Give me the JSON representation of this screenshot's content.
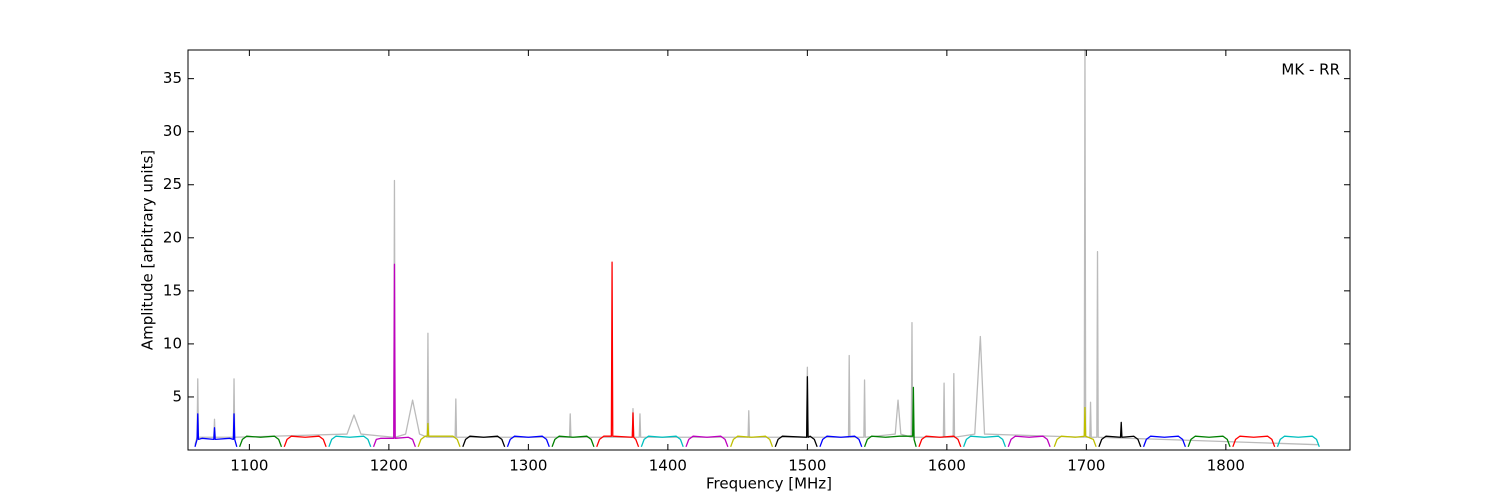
{
  "chart_data": {
    "type": "line",
    "annotation": "MK - RR",
    "x_label": "Frequency [MHz]",
    "y_label": "Amplitude [arbitrary units]",
    "xlim": [
      1056,
      1889
    ],
    "ylim": [
      0,
      37.7
    ],
    "xticks": [
      1100,
      1200,
      1300,
      1400,
      1500,
      1600,
      1700,
      1800
    ],
    "yticks": [
      5,
      10,
      15,
      20,
      25,
      30,
      35
    ],
    "series": [
      {
        "color": "#bbbbbb",
        "x": [
          1061,
          1062.5,
          1063,
          1063.5,
          1074.5,
          1075,
          1075.5,
          1088.5,
          1089,
          1089.5,
          1170,
          1175,
          1180,
          1203.5,
          1204,
          1204.5,
          1212,
          1217,
          1222,
          1227.5,
          1228,
          1228.5,
          1247.5,
          1248,
          1248.5,
          1329.5,
          1330,
          1330.5,
          1374.5,
          1375,
          1375.5,
          1379.5,
          1380,
          1380.5,
          1457.5,
          1458,
          1458.5,
          1499.5,
          1500,
          1500.5,
          1529.5,
          1530,
          1530.5,
          1540.5,
          1541,
          1541.5,
          1563,
          1565,
          1567,
          1574.5,
          1575,
          1575.5,
          1597.5,
          1598,
          1598.5,
          1604.5,
          1605,
          1605.5,
          1620,
          1624,
          1627,
          1698.5,
          1699,
          1699.5,
          1702.5,
          1703,
          1703.5,
          1707.5,
          1708,
          1708.5,
          1866
        ],
        "values": [
          0.5,
          1.2,
          6.7,
          1.2,
          1.2,
          2.9,
          1.2,
          1.2,
          6.7,
          1.2,
          1.5,
          3.3,
          1.5,
          1.2,
          25.4,
          1.2,
          1.5,
          4.7,
          1.5,
          1.2,
          11,
          1.2,
          1.2,
          4.8,
          1.2,
          1.2,
          3.4,
          1.2,
          1.2,
          3.9,
          1.2,
          1.2,
          3.4,
          1.2,
          1.2,
          3.7,
          1.2,
          1.2,
          7.8,
          1.2,
          1.2,
          8.9,
          1.2,
          1.2,
          6.6,
          1.2,
          1.5,
          4.7,
          1.5,
          1.2,
          12,
          1.2,
          1.2,
          6.3,
          1.2,
          1.2,
          7.2,
          1.2,
          1.5,
          10.7,
          1.5,
          1.2,
          37.7,
          1.2,
          1.2,
          4.5,
          1.2,
          1.2,
          18.7,
          1.2,
          0.5
        ]
      },
      {
        "color": "#0000ff",
        "x": [
          1061,
          1062.5,
          1063,
          1063.5,
          1066,
          1074.5,
          1075,
          1075.5,
          1086,
          1088.5,
          1089,
          1089.5,
          1091
        ],
        "values": [
          0.3,
          1.0,
          3.4,
          1.0,
          1.1,
          1.0,
          2.1,
          1.0,
          1.1,
          1.0,
          3.4,
          1.0,
          0.3
        ]
      },
      {
        "color": "#008000",
        "x": [
          1093,
          1095,
          1098,
          1108,
          1118,
          1121,
          1123
        ],
        "values": [
          0.3,
          1.0,
          1.3,
          1.2,
          1.3,
          1.0,
          0.3
        ]
      },
      {
        "color": "#ff0000",
        "x": [
          1125,
          1127,
          1130,
          1140,
          1150,
          1153,
          1155
        ],
        "values": [
          0.3,
          1.0,
          1.3,
          1.2,
          1.3,
          1.0,
          0.3
        ]
      },
      {
        "color": "#00bfbf",
        "x": [
          1157,
          1159,
          1162,
          1172,
          1182,
          1185,
          1187
        ],
        "values": [
          0.3,
          1.0,
          1.3,
          1.2,
          1.3,
          1.0,
          0.3
        ]
      },
      {
        "color": "#bf00bf",
        "x": [
          1189,
          1191,
          1194,
          1203.5,
          1204,
          1204.5,
          1214,
          1217,
          1219
        ],
        "values": [
          0.3,
          1.0,
          1.1,
          1.1,
          17.5,
          1.1,
          1.2,
          1.0,
          0.3
        ]
      },
      {
        "color": "#bfbf00",
        "x": [
          1221,
          1223,
          1226,
          1227.5,
          1228,
          1228.5,
          1246,
          1249,
          1251
        ],
        "values": [
          0.3,
          1.0,
          1.3,
          1.3,
          2.5,
          1.3,
          1.3,
          1.0,
          0.3
        ]
      },
      {
        "color": "#000000",
        "x": [
          1253,
          1255,
          1258,
          1268,
          1278,
          1281,
          1283
        ],
        "values": [
          0.3,
          1.0,
          1.3,
          1.2,
          1.3,
          1.0,
          0.3
        ]
      },
      {
        "color": "#0000ff",
        "x": [
          1285,
          1287,
          1290,
          1300,
          1310,
          1313,
          1315
        ],
        "values": [
          0.3,
          1.0,
          1.3,
          1.2,
          1.3,
          1.0,
          0.3
        ]
      },
      {
        "color": "#008000",
        "x": [
          1317,
          1319,
          1322,
          1332,
          1342,
          1345,
          1347
        ],
        "values": [
          0.3,
          1.0,
          1.3,
          1.2,
          1.3,
          1.0,
          0.3
        ]
      },
      {
        "color": "#ff0000",
        "x": [
          1349,
          1351,
          1354,
          1359.5,
          1360,
          1360.5,
          1374.5,
          1375,
          1375.5,
          1377,
          1379
        ],
        "values": [
          0.3,
          1.0,
          1.3,
          1.3,
          17.7,
          1.3,
          1.2,
          3.5,
          1.2,
          1.0,
          0.3
        ]
      },
      {
        "color": "#00bfbf",
        "x": [
          1381,
          1383,
          1386,
          1396,
          1406,
          1409,
          1411
        ],
        "values": [
          0.3,
          1.0,
          1.3,
          1.2,
          1.3,
          1.0,
          0.3
        ]
      },
      {
        "color": "#bf00bf",
        "x": [
          1413,
          1415,
          1418,
          1428,
          1438,
          1441,
          1443
        ],
        "values": [
          0.3,
          1.0,
          1.3,
          1.2,
          1.3,
          1.0,
          0.3
        ]
      },
      {
        "color": "#bfbf00",
        "x": [
          1445,
          1447,
          1450,
          1460,
          1470,
          1473,
          1475
        ],
        "values": [
          0.3,
          1.0,
          1.3,
          1.2,
          1.3,
          1.0,
          0.3
        ]
      },
      {
        "color": "#000000",
        "x": [
          1477,
          1479,
          1482,
          1499.5,
          1500,
          1500.5,
          1502,
          1505,
          1507
        ],
        "values": [
          0.3,
          1.0,
          1.3,
          1.2,
          6.9,
          1.2,
          1.3,
          1.0,
          0.3
        ]
      },
      {
        "color": "#0000ff",
        "x": [
          1509,
          1511,
          1514,
          1524,
          1534,
          1537,
          1539
        ],
        "values": [
          0.3,
          1.0,
          1.3,
          1.2,
          1.3,
          1.0,
          0.3
        ]
      },
      {
        "color": "#008000",
        "x": [
          1541,
          1543,
          1546,
          1556,
          1566,
          1575.5,
          1576,
          1576.5,
          1578
        ],
        "values": [
          0.3,
          1.0,
          1.3,
          1.2,
          1.3,
          1.3,
          5.9,
          1.0,
          0.3
        ]
      },
      {
        "color": "#ff0000",
        "x": [
          1580,
          1582,
          1585,
          1595,
          1605,
          1608,
          1610
        ],
        "values": [
          0.3,
          1.0,
          1.3,
          1.2,
          1.3,
          1.0,
          0.3
        ]
      },
      {
        "color": "#00bfbf",
        "x": [
          1612,
          1614,
          1617,
          1627,
          1637,
          1640,
          1642
        ],
        "values": [
          0.3,
          1.0,
          1.3,
          1.2,
          1.3,
          1.0,
          0.3
        ]
      },
      {
        "color": "#bf00bf",
        "x": [
          1644,
          1646,
          1649,
          1659,
          1669,
          1672,
          1674
        ],
        "values": [
          0.3,
          1.0,
          1.3,
          1.2,
          1.3,
          1.0,
          0.3
        ]
      },
      {
        "color": "#bfbf00",
        "x": [
          1677,
          1679,
          1682,
          1692,
          1698.5,
          1699,
          1699.5,
          1705,
          1707
        ],
        "values": [
          0.3,
          1.0,
          1.3,
          1.2,
          1.3,
          4.0,
          1.3,
          1.0,
          0.3
        ]
      },
      {
        "color": "#000000",
        "x": [
          1709,
          1711,
          1714,
          1724.5,
          1725,
          1725.5,
          1734,
          1737,
          1739
        ],
        "values": [
          0.3,
          1.0,
          1.3,
          1.2,
          2.6,
          1.2,
          1.3,
          1.0,
          0.3
        ]
      },
      {
        "color": "#0000ff",
        "x": [
          1741,
          1743,
          1746,
          1756,
          1766,
          1769,
          1771
        ],
        "values": [
          0.3,
          1.0,
          1.3,
          1.2,
          1.3,
          1.0,
          0.3
        ]
      },
      {
        "color": "#008000",
        "x": [
          1773,
          1775,
          1778,
          1788,
          1798,
          1801,
          1803
        ],
        "values": [
          0.3,
          1.0,
          1.3,
          1.2,
          1.3,
          1.0,
          0.3
        ]
      },
      {
        "color": "#ff0000",
        "x": [
          1805,
          1807,
          1810,
          1820,
          1830,
          1833,
          1835
        ],
        "values": [
          0.3,
          1.0,
          1.3,
          1.2,
          1.3,
          1.0,
          0.3
        ]
      },
      {
        "color": "#00bfbf",
        "x": [
          1837,
          1839,
          1842,
          1852,
          1862,
          1865,
          1867
        ],
        "values": [
          0.3,
          1.0,
          1.3,
          1.2,
          1.3,
          1.0,
          0.3
        ]
      }
    ]
  }
}
